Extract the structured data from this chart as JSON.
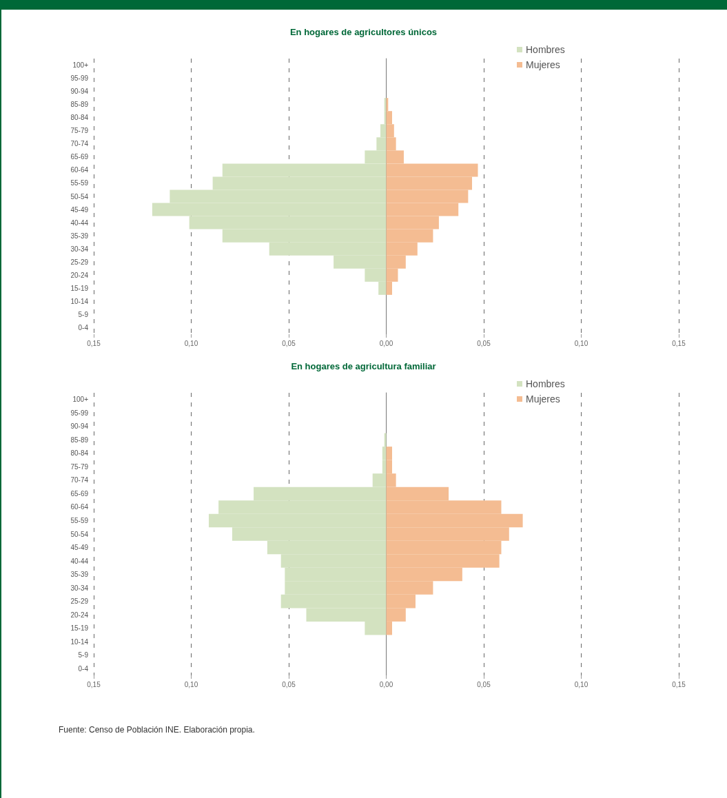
{
  "chart_data": [
    {
      "type": "bar",
      "title": "En hogares de agricultores únicos",
      "orientation": "horizontal",
      "stacked": true,
      "categories": [
        "100+",
        "95-99",
        "90-94",
        "85-89",
        "80-84",
        "75-79",
        "70-74",
        "65-69",
        "60-64",
        "55-59",
        "50-54",
        "45-49",
        "40-44",
        "35-39",
        "30-34",
        "25-29",
        "20-24",
        "15-19",
        "10-14",
        "5-9",
        "0-4"
      ],
      "series": [
        {
          "name": "Hombres",
          "color": "#d3e2c0",
          "values": [
            0,
            0,
            0,
            -0.001,
            -0.001,
            -0.003,
            -0.005,
            -0.011,
            -0.084,
            -0.089,
            -0.111,
            -0.12,
            -0.101,
            -0.084,
            -0.06,
            -0.027,
            -0.011,
            -0.004,
            0,
            0,
            0
          ]
        },
        {
          "name": "Mujeres",
          "color": "#f4bc92",
          "values": [
            0,
            0,
            0,
            0.001,
            0.003,
            0.004,
            0.005,
            0.009,
            0.047,
            0.044,
            0.042,
            0.037,
            0.027,
            0.024,
            0.016,
            0.01,
            0.006,
            0.003,
            0,
            0,
            0
          ]
        }
      ],
      "xlim": [
        -0.15,
        0.15
      ],
      "xticks": [
        {
          "value": -0.15,
          "label": "0,15"
        },
        {
          "value": -0.1,
          "label": "0,10"
        },
        {
          "value": -0.05,
          "label": "0,05"
        },
        {
          "value": 0,
          "label": "0,00"
        },
        {
          "value": 0.05,
          "label": "0,05"
        },
        {
          "value": 0.1,
          "label": "0,10"
        },
        {
          "value": 0.15,
          "label": "0,15"
        }
      ],
      "grid": "x",
      "legend": "top right"
    },
    {
      "type": "bar",
      "title": "En hogares de agricultura familiar",
      "orientation": "horizontal",
      "stacked": true,
      "categories": [
        "100+",
        "95-99",
        "90-94",
        "85-89",
        "80-84",
        "75-79",
        "70-74",
        "65-69",
        "60-64",
        "55-59",
        "50-54",
        "45-49",
        "40-44",
        "35-39",
        "30-34",
        "25-29",
        "20-24",
        "15-19",
        "10-14",
        "5-9",
        "0-4"
      ],
      "series": [
        {
          "name": "Hombres",
          "color": "#d3e2c0",
          "values": [
            0,
            0,
            0,
            -0.001,
            -0.002,
            -0.002,
            -0.007,
            -0.068,
            -0.086,
            -0.091,
            -0.079,
            -0.061,
            -0.054,
            -0.052,
            -0.052,
            -0.054,
            -0.041,
            -0.011,
            0,
            0,
            0
          ]
        },
        {
          "name": "Mujeres",
          "color": "#f4bc92",
          "values": [
            0,
            0,
            0,
            0,
            0.003,
            0.003,
            0.005,
            0.032,
            0.059,
            0.07,
            0.063,
            0.059,
            0.058,
            0.039,
            0.024,
            0.015,
            0.01,
            0.003,
            0,
            0,
            0
          ]
        }
      ],
      "xlim": [
        -0.15,
        0.15
      ],
      "xticks": [
        {
          "value": -0.15,
          "label": "0,15"
        },
        {
          "value": -0.1,
          "label": "0,10"
        },
        {
          "value": -0.05,
          "label": "0,05"
        },
        {
          "value": 0,
          "label": "0,00"
        },
        {
          "value": 0.05,
          "label": "0,05"
        },
        {
          "value": 0.1,
          "label": "0,10"
        },
        {
          "value": 0.15,
          "label": "0,15"
        }
      ],
      "grid": "x",
      "legend": "top right",
      "annotations": [
        "Fuente: Censo de Población INE. Elaboración propia."
      ]
    }
  ]
}
